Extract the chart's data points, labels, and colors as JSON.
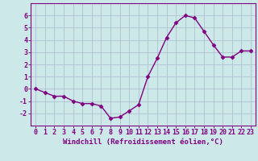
{
  "x": [
    0,
    1,
    2,
    3,
    4,
    5,
    6,
    7,
    8,
    9,
    10,
    11,
    12,
    13,
    14,
    15,
    16,
    17,
    18,
    19,
    20,
    21,
    22,
    23
  ],
  "y": [
    0.0,
    -0.3,
    -0.6,
    -0.6,
    -1.0,
    -1.2,
    -1.2,
    -1.4,
    -2.4,
    -2.3,
    -1.8,
    -1.3,
    1.0,
    2.5,
    4.2,
    5.4,
    6.0,
    5.8,
    4.7,
    3.6,
    2.6,
    2.6,
    3.1,
    3.1
  ],
  "line_color": "#800080",
  "marker": "D",
  "marker_size": 2.5,
  "bg_color": "#cce8e8",
  "grid_color": "#aabbcc",
  "xlabel": "Windchill (Refroidissement éolien,°C)",
  "xlim_min": -0.5,
  "xlim_max": 23.5,
  "ylim": [
    -3,
    7
  ],
  "yticks": [
    -2,
    -1,
    0,
    1,
    2,
    3,
    4,
    5,
    6
  ],
  "xticks": [
    0,
    1,
    2,
    3,
    4,
    5,
    6,
    7,
    8,
    9,
    10,
    11,
    12,
    13,
    14,
    15,
    16,
    17,
    18,
    19,
    20,
    21,
    22,
    23
  ],
  "spine_color": "#800080",
  "xlabel_fontsize": 6.5,
  "tick_fontsize": 6.0,
  "xlabel_color": "#800080",
  "line_width": 1.0
}
